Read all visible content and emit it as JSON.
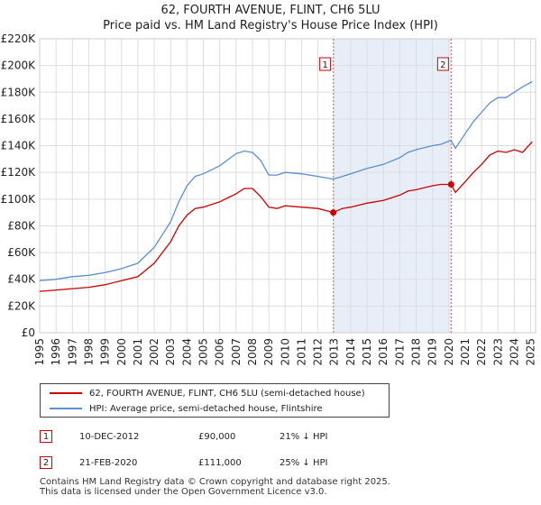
{
  "chart_data": {
    "type": "line",
    "title": "62, FOURTH AVENUE, FLINT, CH6 5LU",
    "subtitle": "Price paid vs. HM Land Registry's House Price Index (HPI)",
    "xlim": [
      1995,
      2025.3
    ],
    "ylim": [
      0,
      220000
    ],
    "x_ticks": [
      1995,
      1996,
      1997,
      1998,
      1999,
      2000,
      2001,
      2002,
      2003,
      2004,
      2005,
      2006,
      2007,
      2008,
      2009,
      2010,
      2011,
      2012,
      2013,
      2014,
      2015,
      2016,
      2017,
      2018,
      2019,
      2020,
      2021,
      2022,
      2023,
      2024,
      2025
    ],
    "y_ticks": [
      0,
      20000,
      40000,
      60000,
      80000,
      100000,
      120000,
      140000,
      160000,
      180000,
      200000,
      220000
    ],
    "y_tick_labels": [
      "£0",
      "£20K",
      "£40K",
      "£60K",
      "£80K",
      "£100K",
      "£120K",
      "£140K",
      "£160K",
      "£180K",
      "£200K",
      "£220K"
    ],
    "shaded_region": [
      2012.94,
      2020.14
    ],
    "series": [
      {
        "name": "62, FOURTH AVENUE, FLINT, CH6 5LU (semi-detached house)",
        "color": "#cc0000",
        "x": [
          1995,
          1996,
          1997,
          1998,
          1999,
          2000,
          2001,
          2002,
          2003,
          2003.5,
          2004,
          2004.5,
          2005,
          2006,
          2007,
          2007.5,
          2008,
          2008.5,
          2009,
          2009.5,
          2010,
          2011,
          2012,
          2012.94,
          2013.5,
          2014,
          2015,
          2016,
          2017,
          2017.5,
          2018,
          2019,
          2019.5,
          2020.14,
          2020.4,
          2021,
          2021.5,
          2022,
          2022.5,
          2023,
          2023.5,
          2024,
          2024.5,
          2025.1
        ],
        "y": [
          31000,
          32000,
          33000,
          34000,
          36000,
          39000,
          42000,
          52000,
          68000,
          80000,
          88000,
          93000,
          94000,
          98000,
          104000,
          108000,
          108000,
          102000,
          94000,
          93000,
          95000,
          94000,
          93000,
          90000,
          93000,
          94000,
          97000,
          99000,
          103000,
          106000,
          107000,
          110000,
          111000,
          111000,
          105000,
          113000,
          120000,
          126000,
          133000,
          136000,
          135000,
          137000,
          135000,
          143000
        ]
      },
      {
        "name": "HPI: Average price, semi-detached house, Flintshire",
        "color": "#5b8fd0",
        "x": [
          1995,
          1996,
          1997,
          1998,
          1999,
          2000,
          2001,
          2002,
          2003,
          2003.5,
          2004,
          2004.5,
          2005,
          2006,
          2007,
          2007.5,
          2008,
          2008.5,
          2009,
          2009.5,
          2010,
          2011,
          2012,
          2012.94,
          2013.5,
          2014,
          2015,
          2016,
          2017,
          2017.5,
          2018,
          2019,
          2019.5,
          2020.14,
          2020.4,
          2021,
          2021.5,
          2022,
          2022.5,
          2023,
          2023.5,
          2024,
          2024.5,
          2025.1
        ],
        "y": [
          39000,
          40000,
          42000,
          43000,
          45000,
          48000,
          52000,
          64000,
          83000,
          98000,
          110000,
          117000,
          119000,
          125000,
          134000,
          136000,
          135000,
          129000,
          118000,
          118000,
          120000,
          119000,
          117000,
          115000,
          117000,
          119000,
          123000,
          126000,
          131000,
          135000,
          137000,
          140000,
          141000,
          144000,
          138000,
          149000,
          158000,
          165000,
          172000,
          176000,
          176000,
          180000,
          184000,
          188000
        ]
      }
    ],
    "markers": [
      {
        "label": "1",
        "x": 2012.94,
        "y": 90000
      },
      {
        "label": "2",
        "x": 2020.14,
        "y": 111000
      }
    ]
  },
  "legend": {
    "property": "62, FOURTH AVENUE, FLINT, CH6 5LU (semi-detached house)",
    "hpi": "HPI: Average price, semi-detached house, Flintshire"
  },
  "transactions": [
    {
      "num": "1",
      "date": "10-DEC-2012",
      "price": "£90,000",
      "hpi": "21% ↓ HPI"
    },
    {
      "num": "2",
      "date": "21-FEB-2020",
      "price": "£111,000",
      "hpi": "25% ↓ HPI"
    }
  ],
  "footer": {
    "line1": "Contains HM Land Registry data © Crown copyright and database right 2025.",
    "line2": "This data is licensed under the Open Government Licence v3.0."
  }
}
